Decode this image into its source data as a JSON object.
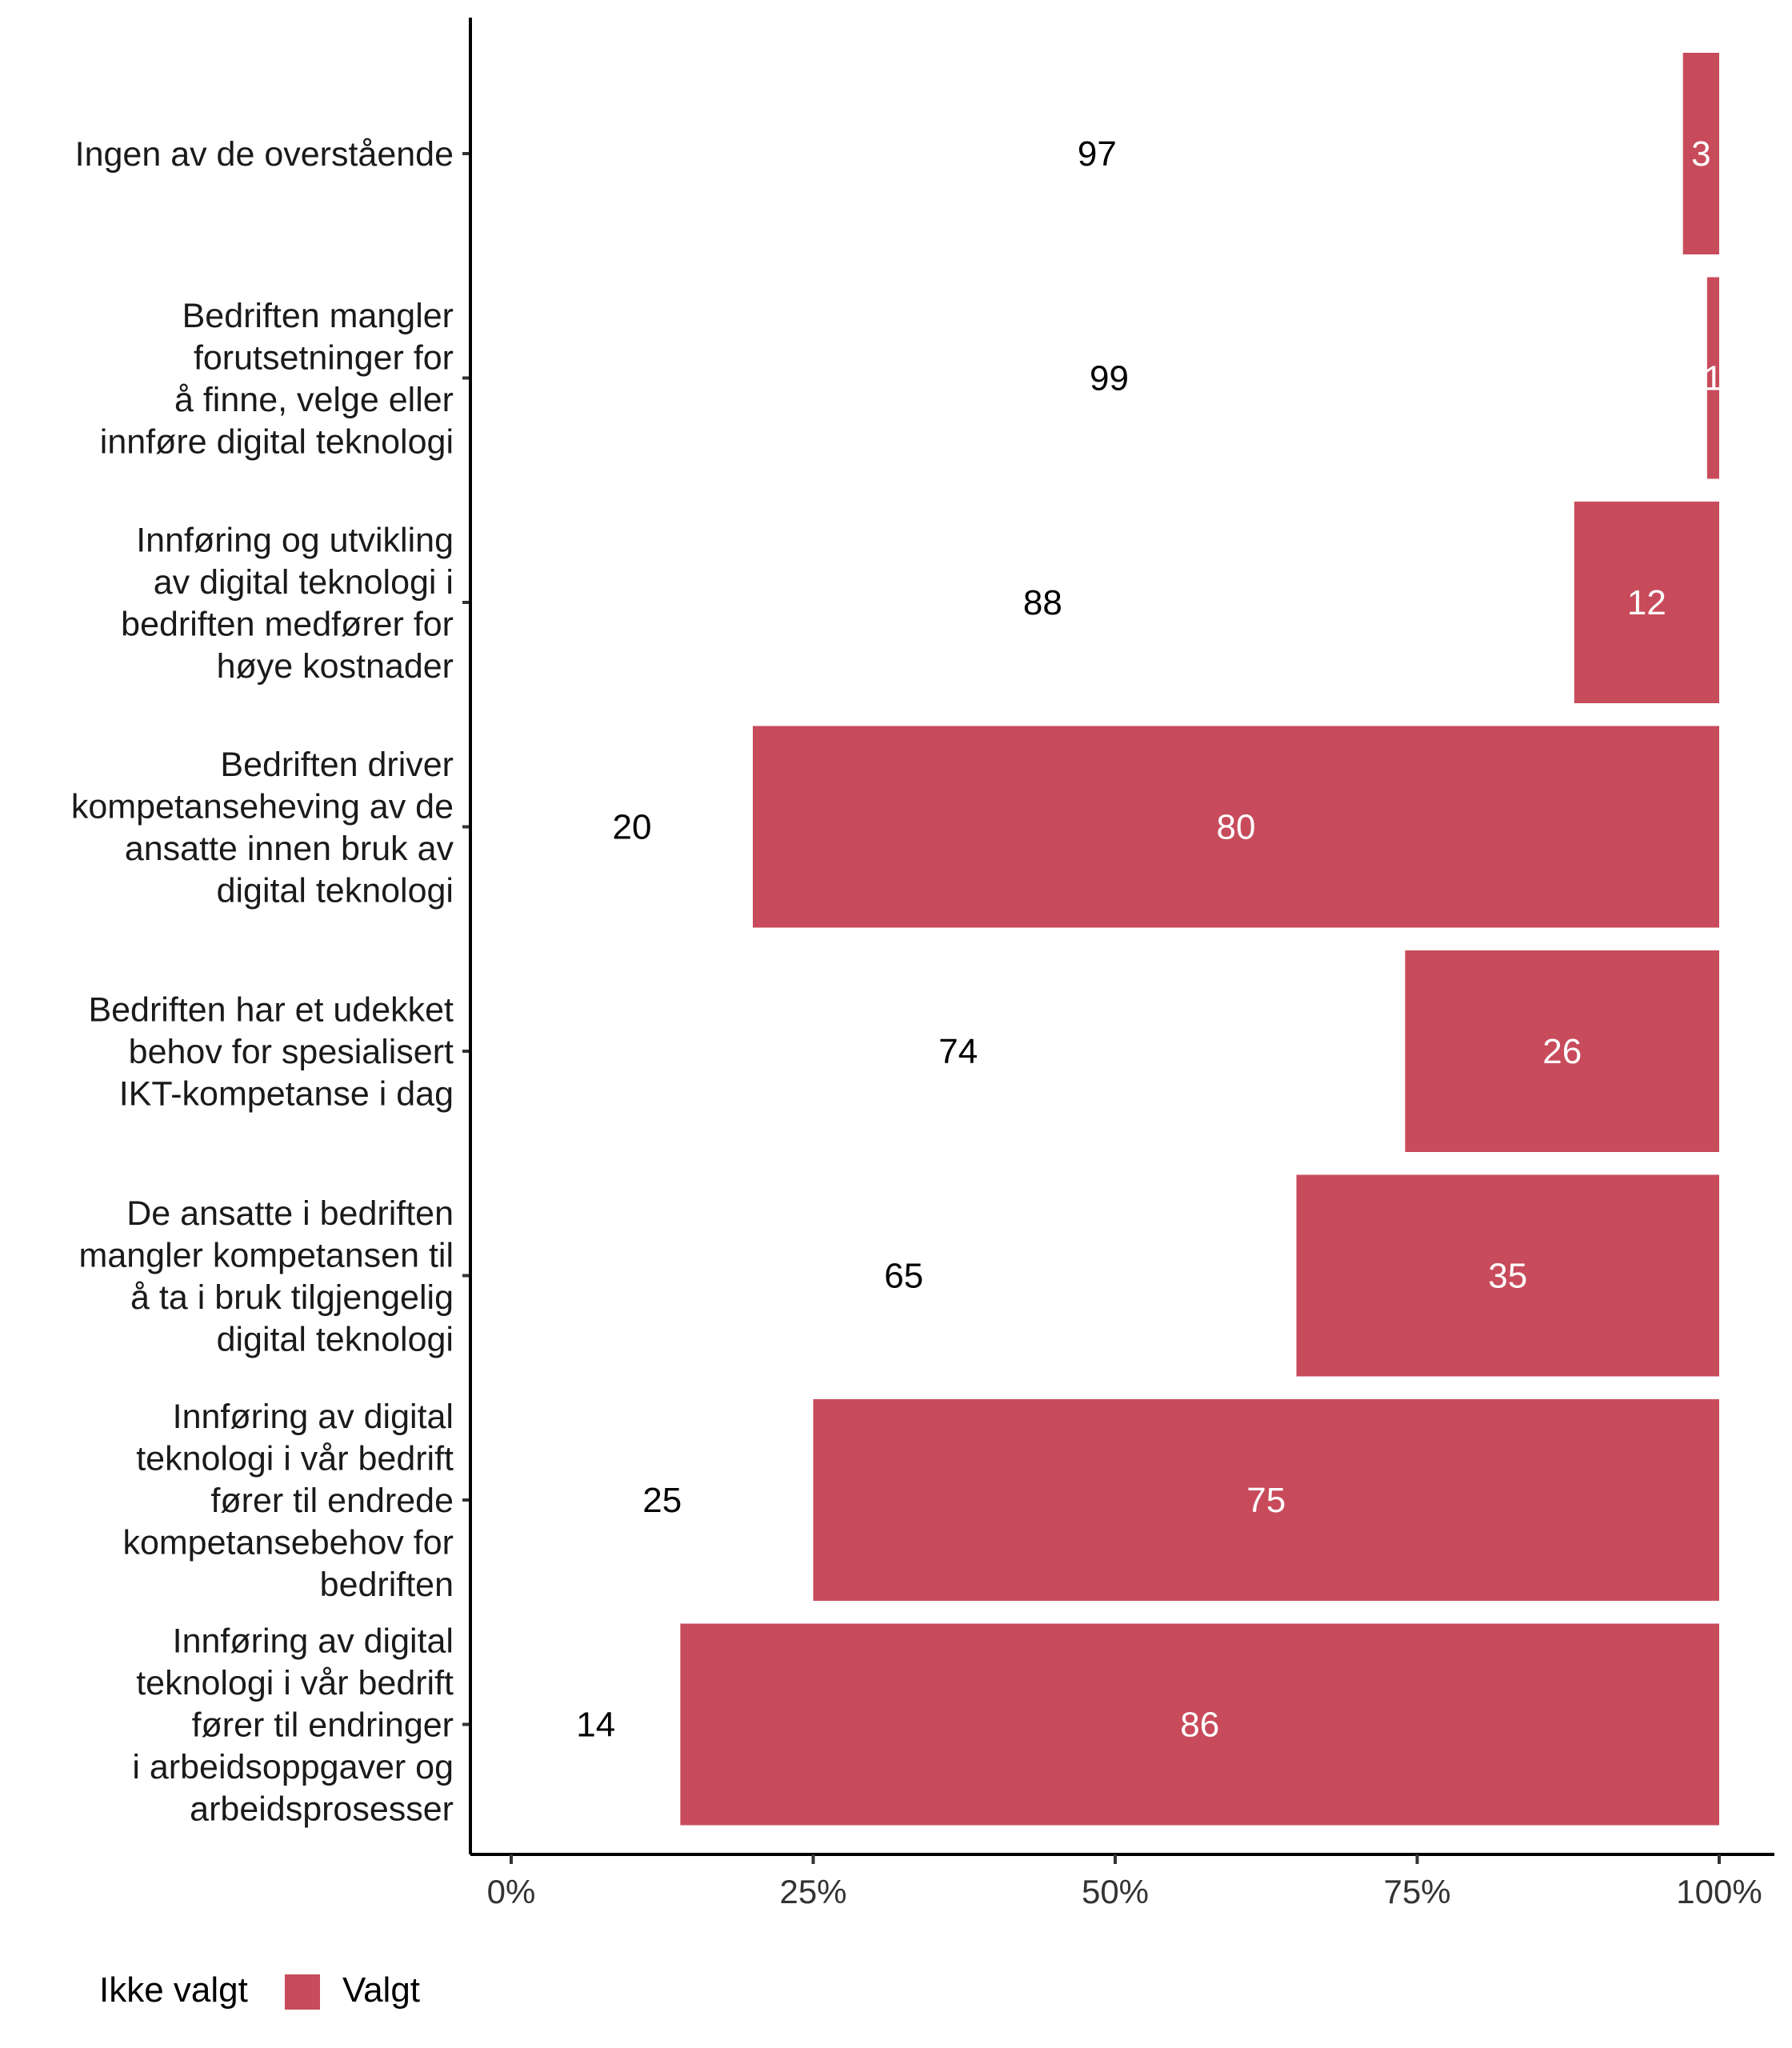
{
  "chart_data": {
    "type": "bar",
    "orientation": "horizontal",
    "stacked": true,
    "categories": [
      "Ingen av de overstående",
      "Bedriften mangler forutsetninger for å finne, velge eller innføre digital teknologi",
      "Innføring og utvikling av digital teknologi i bedriften medfører for høye kostnader",
      "Bedriften driver kompetanseheving av de ansatte innen bruk av digital teknologi",
      "Bedriften har et udekket behov for spesialisert IKT-kompetanse i dag",
      "De ansatte i bedriften mangler kompetansen til å ta i bruk tilgjengelig digital teknologi",
      "Innføring av digital teknologi i vår bedrift fører til endrede kompetansebehov for bedriften",
      "Innføring av digital teknologi i vår bedrift fører til endringer i arbeidsoppgaver og arbeidsprosesser"
    ],
    "category_lines": [
      [
        "Ingen av de overstående"
      ],
      [
        "Bedriften mangler",
        "forutsetninger for",
        "å finne, velge eller",
        "innføre digital teknologi"
      ],
      [
        "Innføring og utvikling",
        "av digital teknologi i",
        "bedriften medfører for",
        "høye kostnader"
      ],
      [
        "Bedriften driver",
        "kompetanseheving av de",
        "ansatte innen bruk av",
        "digital teknologi"
      ],
      [
        "Bedriften har et udekket",
        "behov for spesialisert",
        "IKT-kompetanse i dag"
      ],
      [
        "De ansatte i bedriften",
        "mangler kompetansen til",
        "å ta i bruk tilgjengelig",
        "digital teknologi"
      ],
      [
        "Innføring av digital",
        "teknologi i vår bedrift",
        "fører til endrede",
        "kompetansebehov for",
        "bedriften"
      ],
      [
        "Innføring av digital",
        "teknologi i vår bedrift",
        "fører til endringer",
        "i arbeidsoppgaver og",
        "arbeidsprosesser"
      ]
    ],
    "series": [
      {
        "name": "Ikke valgt",
        "color": "#ffffff",
        "values": [
          97,
          99,
          88,
          20,
          74,
          65,
          25,
          14
        ]
      },
      {
        "name": "Valgt",
        "color": "#c84b5b",
        "values": [
          3,
          1,
          12,
          80,
          26,
          35,
          75,
          86
        ]
      }
    ],
    "xlim": [
      0,
      100
    ],
    "x_ticks": [
      0,
      25,
      50,
      75,
      100
    ],
    "x_tick_labels": [
      "0%",
      "25%",
      "50%",
      "75%",
      "100%"
    ],
    "grid": false,
    "legend": {
      "position": "bottom-left"
    }
  }
}
